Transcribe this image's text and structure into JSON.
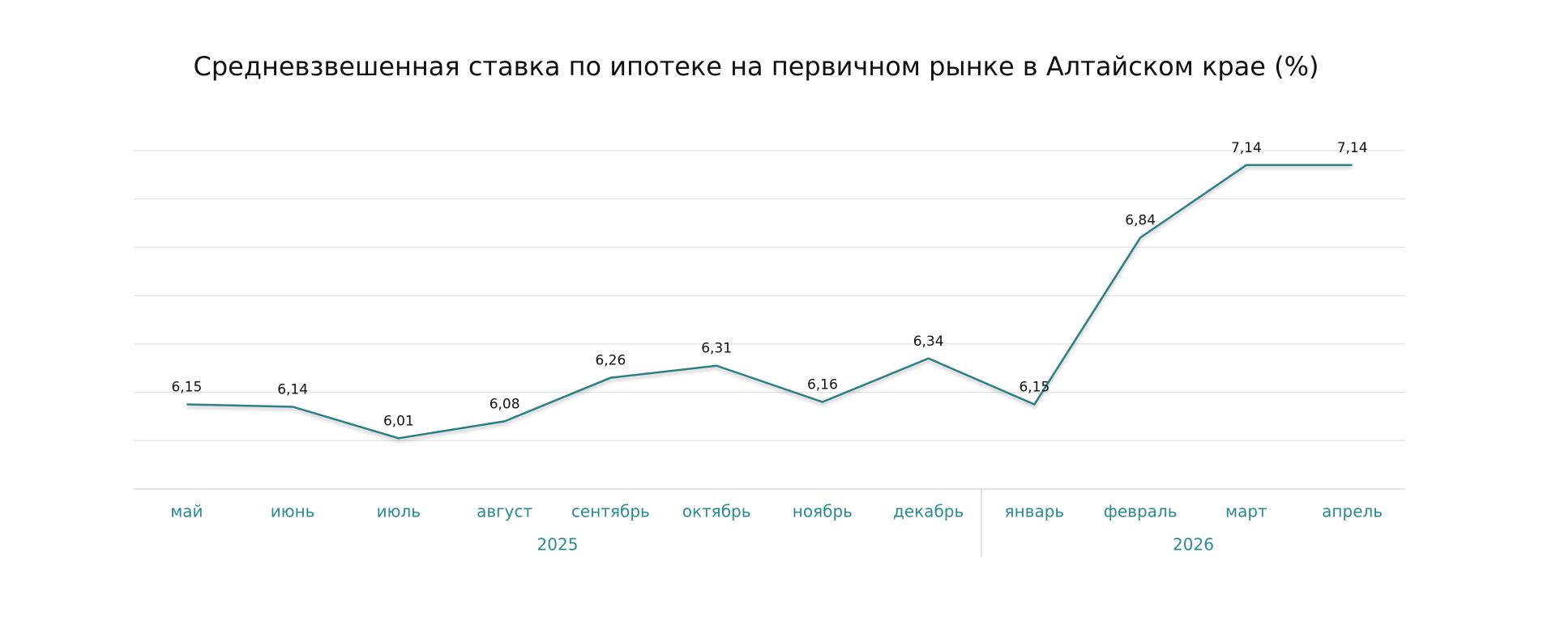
{
  "chart_data": {
    "type": "line",
    "title": "Средневзвешенная ставка по ипотеке на первичном рынке в Алтайском крае (%)",
    "categories": [
      "май",
      "июнь",
      "июль",
      "август",
      "сентябрь",
      "октябрь",
      "ноябрь",
      "декабрь",
      "январь",
      "февраль",
      "март",
      "апрель"
    ],
    "groups": [
      {
        "label": "2025",
        "size": 8
      },
      {
        "label": "2026",
        "size": 4
      }
    ],
    "values": [
      6.15,
      6.14,
      6.01,
      6.08,
      6.26,
      6.31,
      6.16,
      6.34,
      6.15,
      6.84,
      7.14,
      7.14
    ],
    "value_labels": [
      "6,15",
      "6,14",
      "6,01",
      "6,08",
      "6,26",
      "6,31",
      "6,16",
      "6,34",
      "6,15",
      "6,84",
      "7,14",
      "7,14"
    ],
    "color": "#2e7f84",
    "ylim": [
      5.8,
      7.2
    ],
    "yticks": [
      5.8,
      6.0,
      6.2,
      6.4,
      6.6,
      6.8,
      7.0,
      7.2
    ],
    "grid": true
  }
}
